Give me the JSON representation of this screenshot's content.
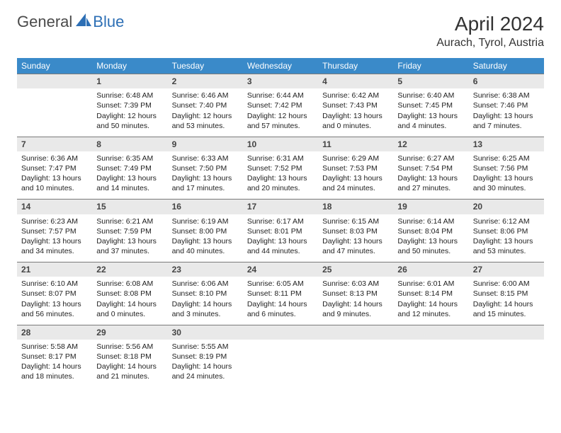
{
  "logo": {
    "general": "General",
    "blue": "Blue"
  },
  "title": "April 2024",
  "location": "Aurach, Tyrol, Austria",
  "colors": {
    "header_bg": "#3a8ac9",
    "header_fg": "#ffffff",
    "daynum_bg": "#e9e9e9",
    "daynum_border": "#7a7a7a",
    "text": "#222222",
    "logo_blue": "#2d6fb5"
  },
  "weekdays": [
    "Sunday",
    "Monday",
    "Tuesday",
    "Wednesday",
    "Thursday",
    "Friday",
    "Saturday"
  ],
  "weeks": [
    [
      null,
      {
        "n": "1",
        "sr": "Sunrise: 6:48 AM",
        "ss": "Sunset: 7:39 PM",
        "dl": "Daylight: 12 hours and 50 minutes."
      },
      {
        "n": "2",
        "sr": "Sunrise: 6:46 AM",
        "ss": "Sunset: 7:40 PM",
        "dl": "Daylight: 12 hours and 53 minutes."
      },
      {
        "n": "3",
        "sr": "Sunrise: 6:44 AM",
        "ss": "Sunset: 7:42 PM",
        "dl": "Daylight: 12 hours and 57 minutes."
      },
      {
        "n": "4",
        "sr": "Sunrise: 6:42 AM",
        "ss": "Sunset: 7:43 PM",
        "dl": "Daylight: 13 hours and 0 minutes."
      },
      {
        "n": "5",
        "sr": "Sunrise: 6:40 AM",
        "ss": "Sunset: 7:45 PM",
        "dl": "Daylight: 13 hours and 4 minutes."
      },
      {
        "n": "6",
        "sr": "Sunrise: 6:38 AM",
        "ss": "Sunset: 7:46 PM",
        "dl": "Daylight: 13 hours and 7 minutes."
      }
    ],
    [
      {
        "n": "7",
        "sr": "Sunrise: 6:36 AM",
        "ss": "Sunset: 7:47 PM",
        "dl": "Daylight: 13 hours and 10 minutes."
      },
      {
        "n": "8",
        "sr": "Sunrise: 6:35 AM",
        "ss": "Sunset: 7:49 PM",
        "dl": "Daylight: 13 hours and 14 minutes."
      },
      {
        "n": "9",
        "sr": "Sunrise: 6:33 AM",
        "ss": "Sunset: 7:50 PM",
        "dl": "Daylight: 13 hours and 17 minutes."
      },
      {
        "n": "10",
        "sr": "Sunrise: 6:31 AM",
        "ss": "Sunset: 7:52 PM",
        "dl": "Daylight: 13 hours and 20 minutes."
      },
      {
        "n": "11",
        "sr": "Sunrise: 6:29 AM",
        "ss": "Sunset: 7:53 PM",
        "dl": "Daylight: 13 hours and 24 minutes."
      },
      {
        "n": "12",
        "sr": "Sunrise: 6:27 AM",
        "ss": "Sunset: 7:54 PM",
        "dl": "Daylight: 13 hours and 27 minutes."
      },
      {
        "n": "13",
        "sr": "Sunrise: 6:25 AM",
        "ss": "Sunset: 7:56 PM",
        "dl": "Daylight: 13 hours and 30 minutes."
      }
    ],
    [
      {
        "n": "14",
        "sr": "Sunrise: 6:23 AM",
        "ss": "Sunset: 7:57 PM",
        "dl": "Daylight: 13 hours and 34 minutes."
      },
      {
        "n": "15",
        "sr": "Sunrise: 6:21 AM",
        "ss": "Sunset: 7:59 PM",
        "dl": "Daylight: 13 hours and 37 minutes."
      },
      {
        "n": "16",
        "sr": "Sunrise: 6:19 AM",
        "ss": "Sunset: 8:00 PM",
        "dl": "Daylight: 13 hours and 40 minutes."
      },
      {
        "n": "17",
        "sr": "Sunrise: 6:17 AM",
        "ss": "Sunset: 8:01 PM",
        "dl": "Daylight: 13 hours and 44 minutes."
      },
      {
        "n": "18",
        "sr": "Sunrise: 6:15 AM",
        "ss": "Sunset: 8:03 PM",
        "dl": "Daylight: 13 hours and 47 minutes."
      },
      {
        "n": "19",
        "sr": "Sunrise: 6:14 AM",
        "ss": "Sunset: 8:04 PM",
        "dl": "Daylight: 13 hours and 50 minutes."
      },
      {
        "n": "20",
        "sr": "Sunrise: 6:12 AM",
        "ss": "Sunset: 8:06 PM",
        "dl": "Daylight: 13 hours and 53 minutes."
      }
    ],
    [
      {
        "n": "21",
        "sr": "Sunrise: 6:10 AM",
        "ss": "Sunset: 8:07 PM",
        "dl": "Daylight: 13 hours and 56 minutes."
      },
      {
        "n": "22",
        "sr": "Sunrise: 6:08 AM",
        "ss": "Sunset: 8:08 PM",
        "dl": "Daylight: 14 hours and 0 minutes."
      },
      {
        "n": "23",
        "sr": "Sunrise: 6:06 AM",
        "ss": "Sunset: 8:10 PM",
        "dl": "Daylight: 14 hours and 3 minutes."
      },
      {
        "n": "24",
        "sr": "Sunrise: 6:05 AM",
        "ss": "Sunset: 8:11 PM",
        "dl": "Daylight: 14 hours and 6 minutes."
      },
      {
        "n": "25",
        "sr": "Sunrise: 6:03 AM",
        "ss": "Sunset: 8:13 PM",
        "dl": "Daylight: 14 hours and 9 minutes."
      },
      {
        "n": "26",
        "sr": "Sunrise: 6:01 AM",
        "ss": "Sunset: 8:14 PM",
        "dl": "Daylight: 14 hours and 12 minutes."
      },
      {
        "n": "27",
        "sr": "Sunrise: 6:00 AM",
        "ss": "Sunset: 8:15 PM",
        "dl": "Daylight: 14 hours and 15 minutes."
      }
    ],
    [
      {
        "n": "28",
        "sr": "Sunrise: 5:58 AM",
        "ss": "Sunset: 8:17 PM",
        "dl": "Daylight: 14 hours and 18 minutes."
      },
      {
        "n": "29",
        "sr": "Sunrise: 5:56 AM",
        "ss": "Sunset: 8:18 PM",
        "dl": "Daylight: 14 hours and 21 minutes."
      },
      {
        "n": "30",
        "sr": "Sunrise: 5:55 AM",
        "ss": "Sunset: 8:19 PM",
        "dl": "Daylight: 14 hours and 24 minutes."
      },
      null,
      null,
      null,
      null
    ]
  ]
}
